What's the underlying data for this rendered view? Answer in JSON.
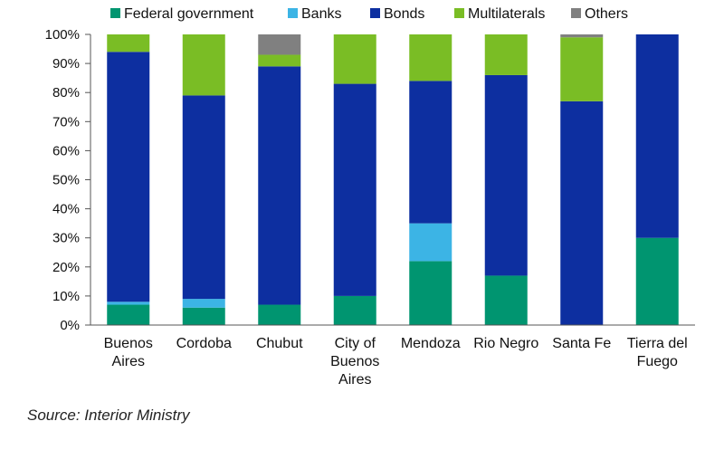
{
  "chart_data": {
    "type": "bar",
    "stacked": true,
    "categories": [
      [
        "Buenos",
        "Aires"
      ],
      [
        "Cordoba"
      ],
      [
        "Chubut"
      ],
      [
        "City of",
        "Buenos",
        "Aires"
      ],
      [
        "Mendoza"
      ],
      [
        "Rio Negro"
      ],
      [
        "Santa Fe"
      ],
      [
        "Tierra del",
        "Fuego"
      ]
    ],
    "series": [
      {
        "name": "Federal government",
        "color": "#009570",
        "values": [
          7,
          6,
          7,
          10,
          22,
          17,
          0,
          30
        ]
      },
      {
        "name": "Banks",
        "color": "#3cb4e5",
        "values": [
          1,
          3,
          0,
          0,
          13,
          0,
          0,
          0
        ]
      },
      {
        "name": "Bonds",
        "color": "#0d2fa0",
        "values": [
          86,
          70,
          82,
          73,
          49,
          69,
          77,
          70
        ]
      },
      {
        "name": "Multilaterals",
        "color": "#7abd25",
        "values": [
          6,
          21,
          4,
          17,
          16,
          14,
          22,
          0
        ]
      },
      {
        "name": "Others",
        "color": "#808080",
        "values": [
          0,
          0,
          7,
          0,
          0,
          0,
          1,
          0
        ]
      }
    ],
    "ylim": [
      0,
      100
    ],
    "yticks": [
      "0%",
      "10%",
      "20%",
      "30%",
      "40%",
      "50%",
      "60%",
      "70%",
      "80%",
      "90%",
      "100%"
    ],
    "legend_position": "top",
    "grid": false,
    "title": "",
    "xlabel": "",
    "ylabel": ""
  },
  "source": "Source: Interior Ministry"
}
